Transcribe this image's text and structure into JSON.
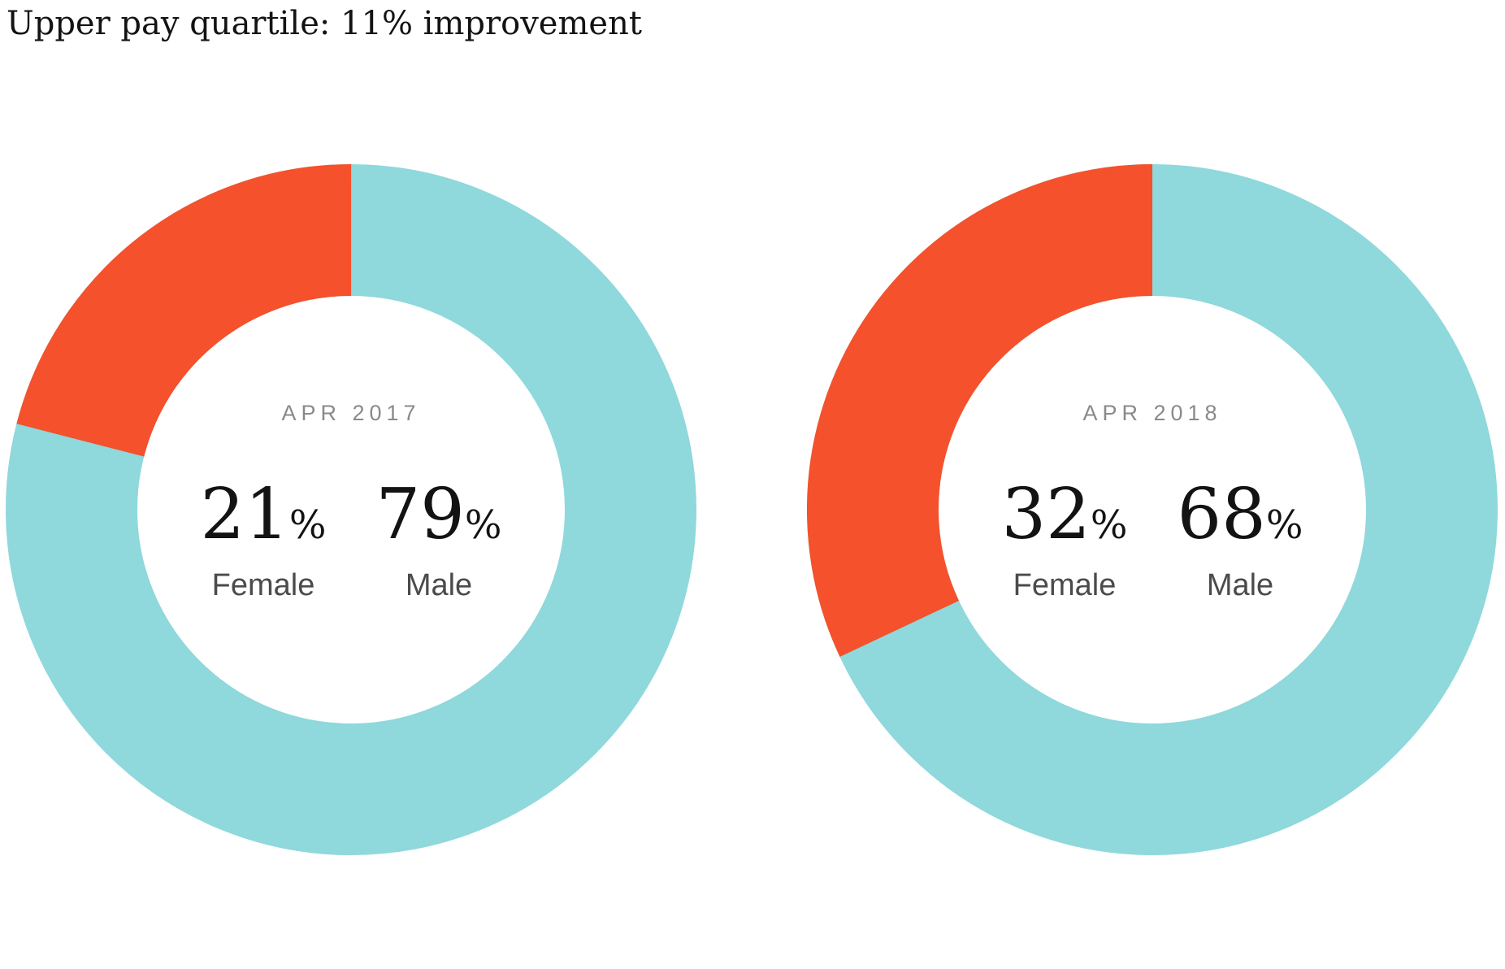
{
  "title": "Upper pay quartile: 11% improvement",
  "colors": {
    "female": "#F4512C",
    "male": "#8FD8DC",
    "period_label": "#8a8a8a",
    "category_label": "#4b4b4b",
    "value_text": "#131313",
    "background": "#ffffff"
  },
  "chart_data": [
    {
      "type": "pie",
      "subtype": "donut",
      "center_label": "APR 2017",
      "categories": [
        "Female",
        "Male"
      ],
      "values": [
        21,
        79
      ],
      "unit": "%",
      "series_colors": [
        "#F4512C",
        "#8FD8DC"
      ],
      "layout": "male segment starts at 12 o'clock and sweeps clockwise 79%; female fills remaining upper-left arc",
      "legend_position": "center-of-donut"
    },
    {
      "type": "pie",
      "subtype": "donut",
      "center_label": "APR 2018",
      "categories": [
        "Female",
        "Male"
      ],
      "values": [
        32,
        68
      ],
      "unit": "%",
      "series_colors": [
        "#F4512C",
        "#8FD8DC"
      ],
      "layout": "male segment starts at 12 o'clock and sweeps clockwise 68%; female fills remaining upper-left arc",
      "legend_position": "center-of-donut"
    }
  ],
  "geometry": {
    "outer_radius": 425,
    "inner_radius": 263
  }
}
